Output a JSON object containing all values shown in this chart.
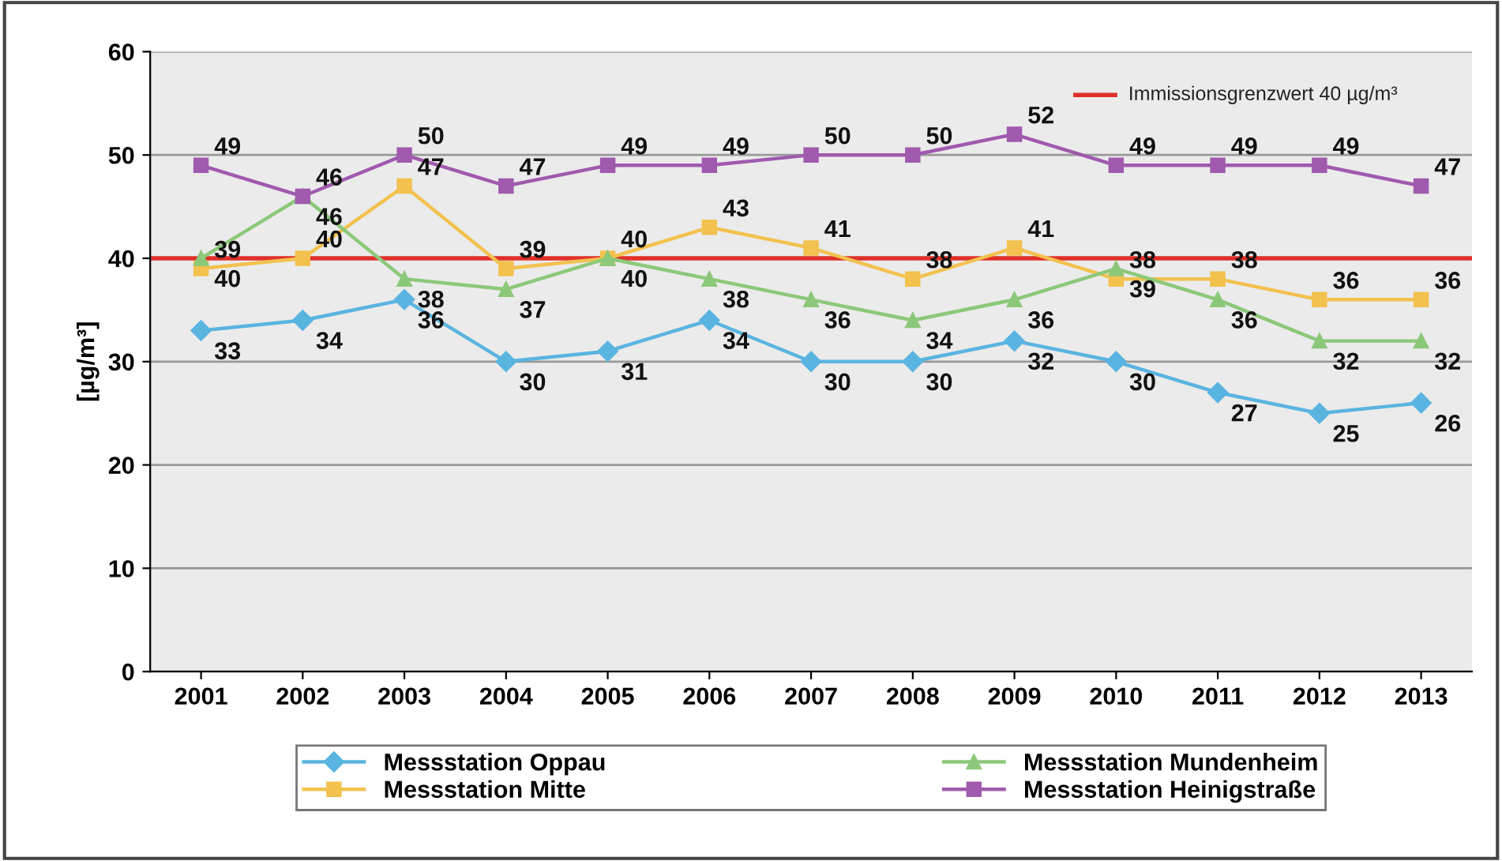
{
  "chart_data": {
    "type": "line",
    "ylabel": "[µg/m³]",
    "categories": [
      "2001",
      "2002",
      "2003",
      "2004",
      "2005",
      "2006",
      "2007",
      "2008",
      "2009",
      "2010",
      "2011",
      "2012",
      "2013"
    ],
    "series": [
      {
        "name": "Messstation Oppau",
        "color": "#5ab4e0",
        "marker": "diamond",
        "values": [
          33,
          34,
          36,
          30,
          31,
          34,
          30,
          30,
          32,
          30,
          27,
          25,
          26
        ]
      },
      {
        "name": "Messstation Mitte",
        "color": "#f2c14e",
        "marker": "square",
        "values": [
          39,
          40,
          47,
          39,
          40,
          43,
          41,
          38,
          41,
          38,
          38,
          36,
          36
        ]
      },
      {
        "name": "Messstation Mundenheim",
        "color": "#8cc87a",
        "marker": "triangle",
        "values": [
          40,
          46,
          38,
          37,
          40,
          38,
          36,
          34,
          36,
          39,
          36,
          32,
          32
        ]
      },
      {
        "name": "Messstation Heinigstraße",
        "color": "#a05aae",
        "marker": "square",
        "values": [
          49,
          46,
          50,
          47,
          49,
          49,
          50,
          50,
          52,
          49,
          49,
          49,
          47
        ]
      }
    ],
    "ref_lines": [
      {
        "axis": "y",
        "value": 40,
        "label": "Immissionsgrenzwert 40 µg/m³",
        "color": "#e0302a"
      }
    ],
    "ylim": [
      0,
      60
    ],
    "yticks": [
      0,
      10,
      20,
      30,
      40,
      50,
      60
    ],
    "grid": "y",
    "legend": "bottom",
    "data_labels": true,
    "line_style": "solid"
  }
}
